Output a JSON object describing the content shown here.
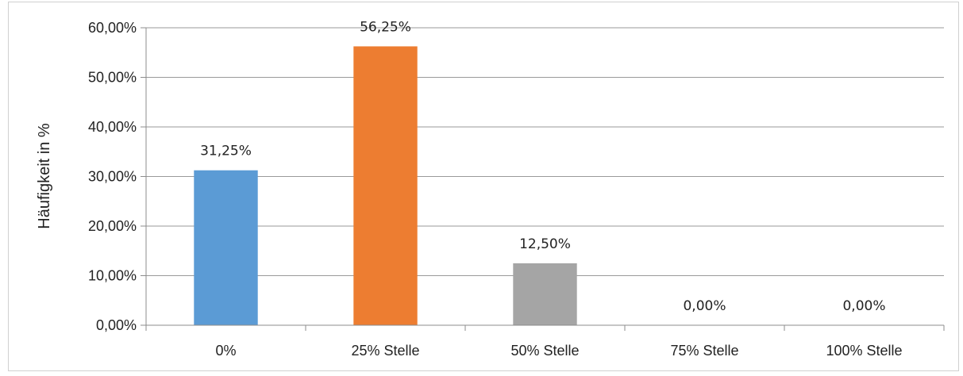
{
  "chart_data": {
    "type": "bar",
    "title": "",
    "xlabel": "",
    "ylabel": "Häufigkeit in %",
    "categories": [
      "0%",
      "25% Stelle",
      "50% Stelle",
      "75% Stelle",
      "100% Stelle"
    ],
    "values": [
      31.25,
      56.25,
      12.5,
      0,
      0
    ],
    "data_labels": [
      "31,25%",
      "56,25%",
      "12,50%",
      "0,00%",
      "0,00%"
    ],
    "bar_colors": [
      "#5b9bd5",
      "#ed7d31",
      "#a5a5a5",
      "#ffc000",
      "#4472c4"
    ],
    "ylim": [
      0,
      60
    ],
    "yticks": [
      0,
      10,
      20,
      30,
      40,
      50,
      60
    ],
    "ytick_labels": [
      "0,00%",
      "10,00%",
      "20,00%",
      "30,00%",
      "40,00%",
      "50,00%",
      "60,00%"
    ],
    "grid": true,
    "legend": "none"
  }
}
